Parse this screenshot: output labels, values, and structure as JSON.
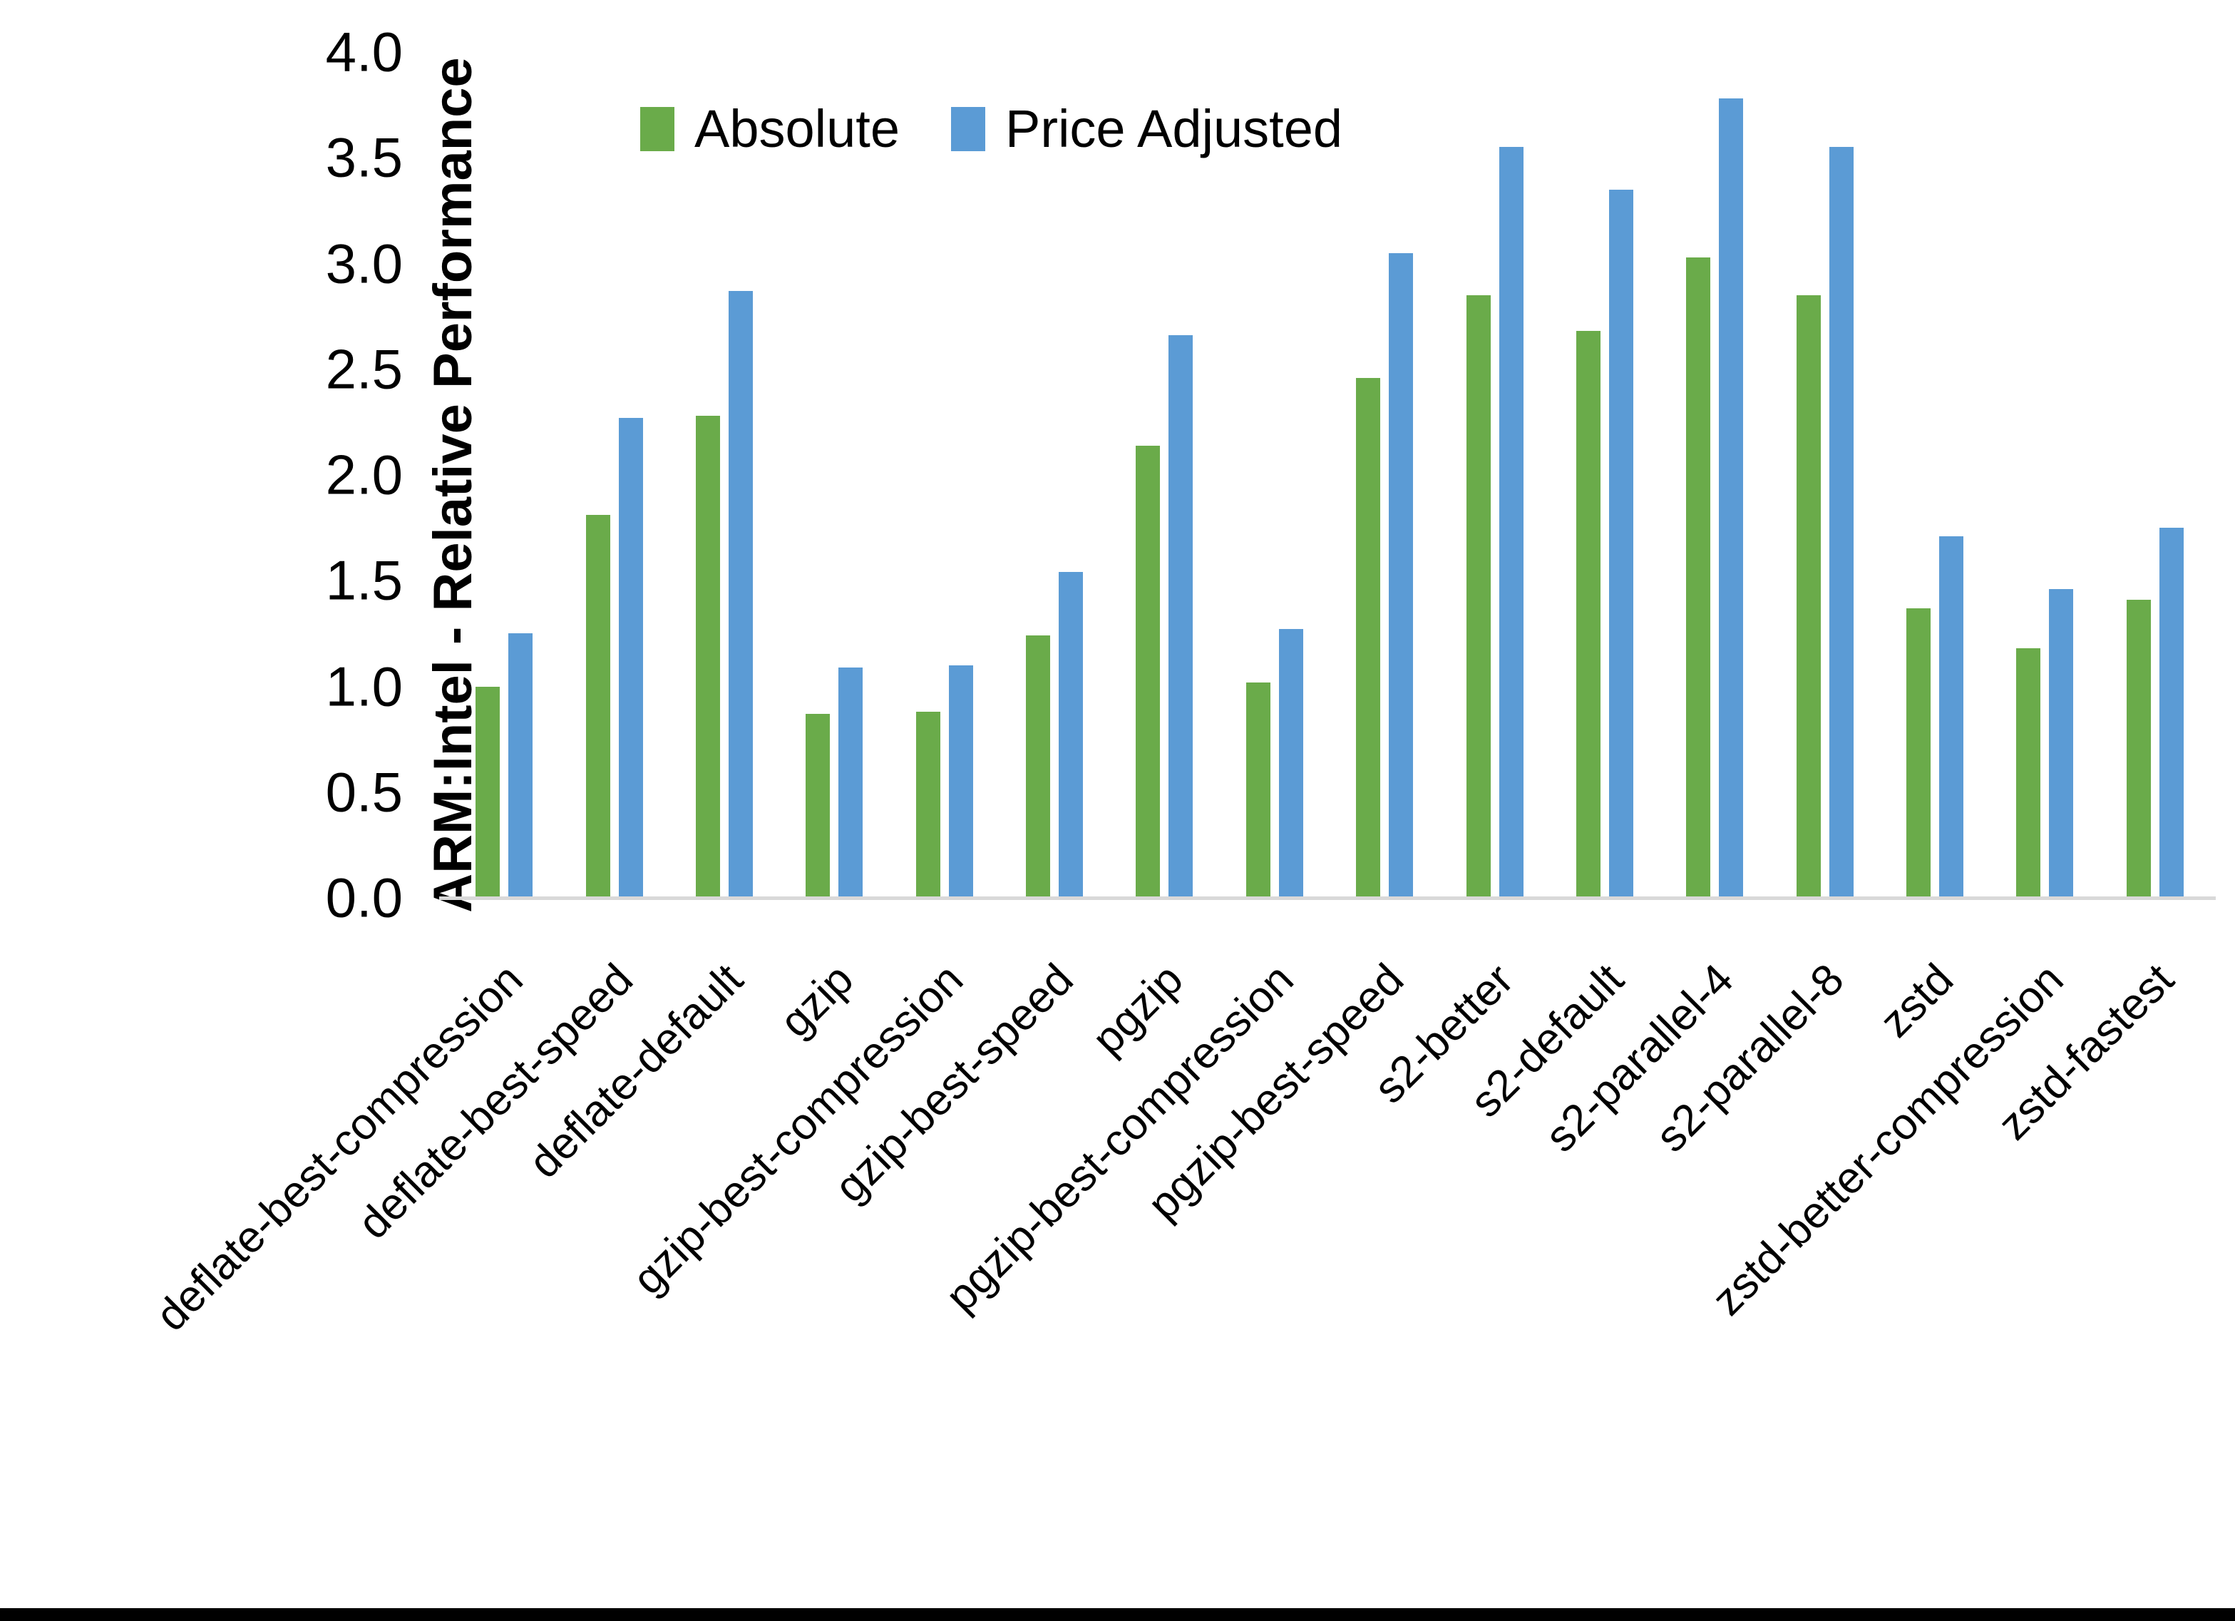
{
  "chart_data": {
    "type": "bar",
    "ylabel": "ARM:Intel - Relative Performance",
    "xlabel": "",
    "ylim": [
      0.0,
      4.0
    ],
    "ytick_step": 0.5,
    "ytick_format_decimals": 1,
    "grid": false,
    "legend_position": "top",
    "categories": [
      "deflate-best-compression",
      "deflate-best-speed",
      "deflate-default",
      "gzip",
      "gzip-best-compression",
      "gzip-best-speed",
      "pgzip",
      "pgzip-best-compression",
      "pgzip-best-speed",
      "s2-better",
      "s2-default",
      "s2-parallel-4",
      "s2-parallel-8",
      "zstd",
      "zstd-better-compression",
      "zstd-fastest"
    ],
    "series": [
      {
        "name": "Absolute",
        "color": "#6AAB4A",
        "values": [
          1.0,
          1.81,
          2.28,
          0.87,
          0.88,
          1.24,
          2.14,
          1.02,
          2.46,
          2.85,
          2.68,
          3.03,
          2.85,
          1.37,
          1.18,
          1.41
        ]
      },
      {
        "name": "Price Adjusted",
        "color": "#5B9BD5",
        "values": [
          1.25,
          2.27,
          2.87,
          1.09,
          1.1,
          1.54,
          2.66,
          1.27,
          3.05,
          3.55,
          3.35,
          3.78,
          3.55,
          1.71,
          1.46,
          1.75
        ]
      }
    ],
    "colors": {
      "axis_line": "#d9d9d9",
      "text": "#000000",
      "background": "#ffffff",
      "bottom_border": "#000000"
    }
  }
}
